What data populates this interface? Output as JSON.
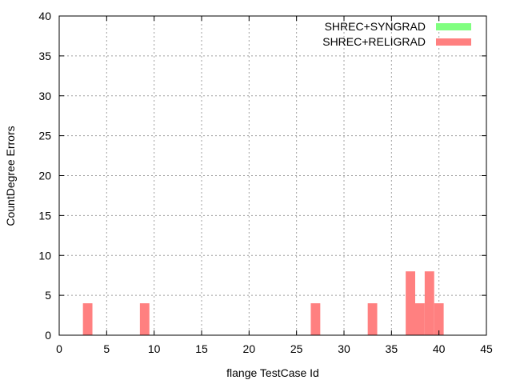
{
  "chart_data": {
    "type": "bar",
    "title": "",
    "xlabel": "flange TestCase Id",
    "ylabel": "CountDegree Errors",
    "xlim": [
      0,
      45
    ],
    "ylim": [
      0,
      40
    ],
    "xticks": [
      0,
      5,
      10,
      15,
      20,
      25,
      30,
      35,
      40,
      45
    ],
    "yticks": [
      0,
      5,
      10,
      15,
      20,
      25,
      30,
      35,
      40
    ],
    "grid": true,
    "legend_position": "top-right",
    "bin_width": 1,
    "series": [
      {
        "name": "SHREC+SYNGRAD",
        "color": "#80ff80",
        "x": [],
        "values": []
      },
      {
        "name": "SHREC+RELIGRAD",
        "color": "#ff8080",
        "x": [
          3,
          9,
          27,
          33,
          37,
          38,
          39,
          40
        ],
        "values": [
          4,
          4,
          4,
          4,
          8,
          4,
          8,
          4
        ]
      }
    ]
  }
}
